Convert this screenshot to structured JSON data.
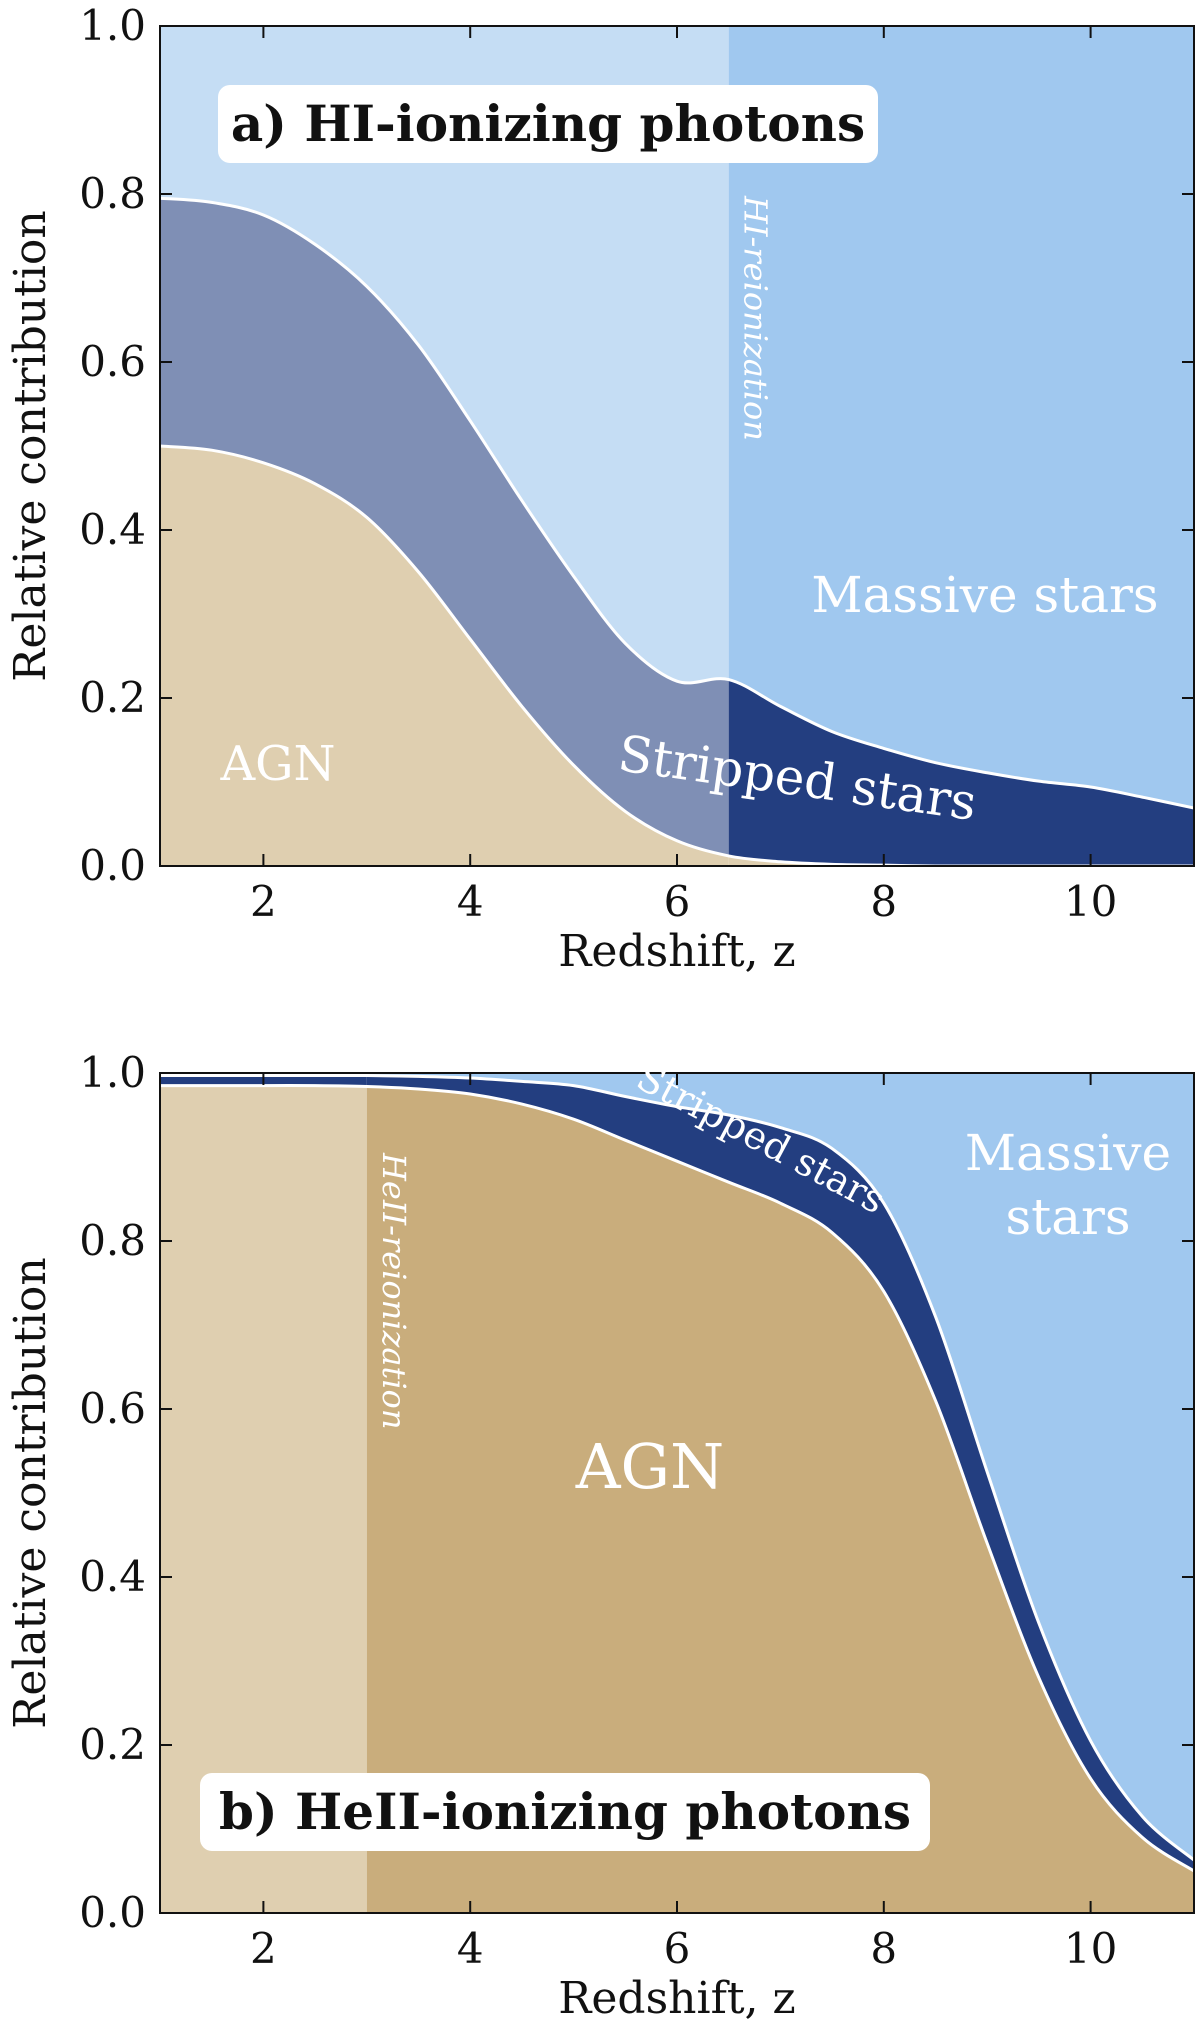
{
  "chart_data": [
    {
      "type": "area",
      "panel_title": "a) HI-ionizing photons",
      "xlabel": "Redshift, z",
      "ylabel": "Relative contribution",
      "xlim": [
        1,
        11
      ],
      "ylim": [
        0,
        1
      ],
      "xticks": [
        "2",
        "4",
        "6",
        "8",
        "10"
      ],
      "yticks": [
        "0.0",
        "0.2",
        "0.4",
        "0.6",
        "0.8",
        "1.0"
      ],
      "x": [
        1,
        1.5,
        2,
        2.5,
        3,
        3.5,
        4,
        4.5,
        5,
        5.5,
        6,
        6.5,
        7,
        7.5,
        8,
        8.5,
        9,
        9.5,
        10,
        10.5,
        11
      ],
      "series": [
        {
          "name": "AGN",
          "values": [
            0.5,
            0.495,
            0.48,
            0.455,
            0.415,
            0.35,
            0.27,
            0.19,
            0.12,
            0.065,
            0.03,
            0.012,
            0.005,
            0.002,
            0.001,
            0.0,
            0.0,
            0.0,
            0.0,
            0.0,
            0.0
          ]
        },
        {
          "name": "Stripped stars",
          "values": [
            0.295,
            0.295,
            0.295,
            0.285,
            0.275,
            0.27,
            0.26,
            0.245,
            0.225,
            0.2,
            0.19,
            0.21,
            0.185,
            0.158,
            0.139,
            0.123,
            0.111,
            0.101,
            0.094,
            0.082,
            0.069
          ]
        },
        {
          "name": "Massive stars",
          "values": [
            0.205,
            0.21,
            0.225,
            0.26,
            0.31,
            0.38,
            0.47,
            0.565,
            0.655,
            0.735,
            0.78,
            0.778,
            0.81,
            0.84,
            0.86,
            0.877,
            0.889,
            0.899,
            0.906,
            0.918,
            0.931
          ]
        }
      ],
      "reionization_z": 6.5,
      "reionization_label": "HI-reionization",
      "labels": {
        "agn": "AGN",
        "stripped": "Stripped stars",
        "massive": "Massive stars"
      }
    },
    {
      "type": "area",
      "panel_title": "b) HeII-ionizing photons",
      "xlabel": "Redshift, z",
      "ylabel": "Relative contribution",
      "xlim": [
        1,
        11
      ],
      "ylim": [
        0,
        1
      ],
      "xticks": [
        "2",
        "4",
        "6",
        "8",
        "10"
      ],
      "yticks": [
        "0.0",
        "0.2",
        "0.4",
        "0.6",
        "0.8",
        "1.0"
      ],
      "x": [
        1,
        1.5,
        2,
        2.5,
        3,
        3.5,
        4,
        4.5,
        5,
        5.5,
        6,
        6.5,
        7,
        7.5,
        8,
        8.5,
        9,
        9.5,
        10,
        10.5,
        11
      ],
      "series": [
        {
          "name": "AGN",
          "values": [
            0.985,
            0.985,
            0.985,
            0.985,
            0.984,
            0.981,
            0.975,
            0.963,
            0.945,
            0.92,
            0.895,
            0.87,
            0.845,
            0.81,
            0.74,
            0.61,
            0.44,
            0.28,
            0.16,
            0.09,
            0.05
          ]
        },
        {
          "name": "Stripped stars",
          "values": [
            0.012,
            0.012,
            0.012,
            0.012,
            0.013,
            0.015,
            0.019,
            0.027,
            0.04,
            0.052,
            0.065,
            0.08,
            0.09,
            0.1,
            0.105,
            0.1,
            0.085,
            0.065,
            0.045,
            0.025,
            0.013
          ]
        },
        {
          "name": "Massive stars",
          "values": [
            0.003,
            0.003,
            0.003,
            0.003,
            0.003,
            0.004,
            0.006,
            0.01,
            0.015,
            0.028,
            0.04,
            0.05,
            0.065,
            0.09,
            0.155,
            0.29,
            0.475,
            0.655,
            0.795,
            0.885,
            0.937
          ]
        }
      ],
      "reionization_z": 3.0,
      "reionization_label": "HeII-reionization",
      "labels": {
        "agn": "AGN",
        "stripped": "Stripped stars",
        "massive": "Massive stars"
      }
    }
  ],
  "colors": {
    "agn_light": "#dfcfb0",
    "agn_dark": "#c9ad7c",
    "stripped_light": "#7f8fb5",
    "stripped_dark": "#233e80",
    "massive_light": "#c5ddf4",
    "massive_dark": "#a0c8ef"
  }
}
